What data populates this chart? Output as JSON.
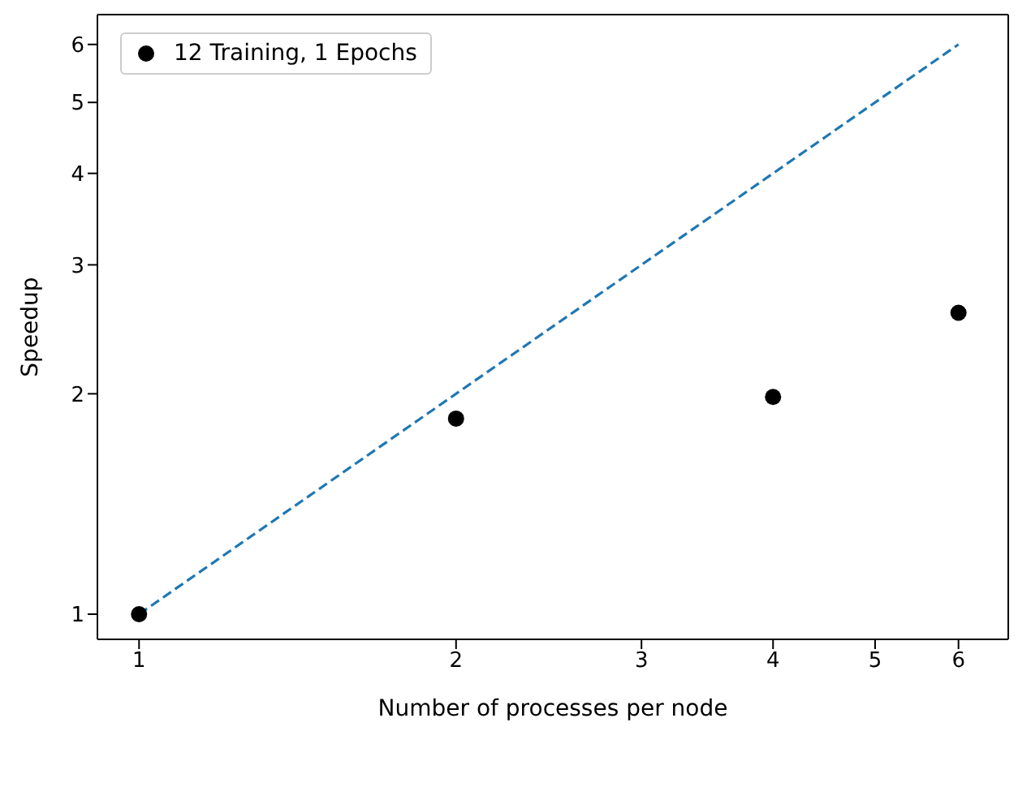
{
  "chart_data": {
    "type": "scatter",
    "xlabel": "Number of processes per node",
    "ylabel": "Speedup",
    "log": "xy",
    "xlim": [
      0.913,
      6.69
    ],
    "ylim": [
      0.924,
      6.59
    ],
    "xticks": [
      1,
      2,
      3,
      4,
      5,
      6
    ],
    "yticks": [
      1,
      2,
      3,
      4,
      5,
      6
    ],
    "grid": false,
    "legend": "top left",
    "series": [
      {
        "type": "line",
        "color": "#1f77b4",
        "line_style": "dashed",
        "marker": "none",
        "x": [
          1,
          6
        ],
        "values": [
          1,
          6
        ]
      },
      {
        "type": "scatter",
        "name": "12 Training, 1 Epochs",
        "color": "#000000",
        "marker": "circle",
        "x": [
          1,
          2,
          4,
          6
        ],
        "values": [
          1,
          1.85,
          1.98,
          2.58
        ]
      }
    ]
  }
}
